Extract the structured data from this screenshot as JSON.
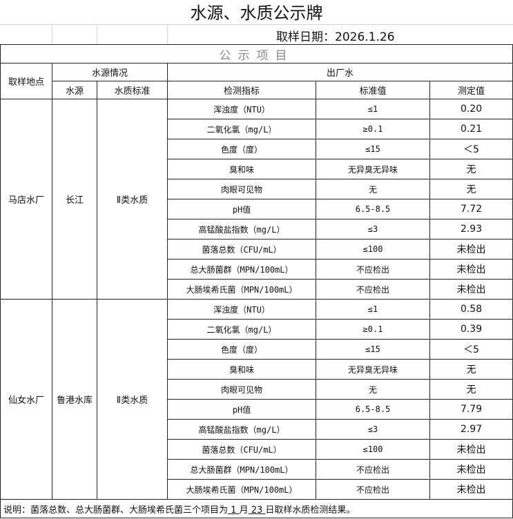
{
  "title": "水源、水质公示牌",
  "date_label": "取样日期：2026.1.26",
  "band": "公示项目",
  "headers": {
    "location": "取样地点",
    "source_group": "水源情况",
    "outlet_group": "出厂水",
    "source": "水源",
    "source_standard": "水质标准",
    "indicator": "检测指标",
    "standard_value": "标准值",
    "measured_value": "测定值"
  },
  "plants": [
    {
      "name": "马店水厂",
      "source": "长江",
      "standard": "Ⅱ类水质",
      "rows": [
        [
          "浑浊度（NTU）",
          "≤1",
          "0.20"
        ],
        [
          "二氧化氯（mg/L）",
          "≥0.1",
          "0.21"
        ],
        [
          "色度（度）",
          "≤15",
          "＜5"
        ],
        [
          "臭和味",
          "无异臭无异味",
          "无"
        ],
        [
          "肉眼可见物",
          "无",
          "无"
        ],
        [
          "pH值",
          "6.5-8.5",
          "7.72"
        ],
        [
          "高锰酸盐指数（mg/L）",
          "≤3",
          "2.93"
        ],
        [
          "菌落总数（CFU/mL）",
          "≤100",
          "未检出"
        ],
        [
          "总大肠菌群（MPN/100mL）",
          "不应检出",
          "未检出"
        ],
        [
          "大肠埃希氏菌（MPN/100mL）",
          "不应检出",
          "未检出"
        ]
      ]
    },
    {
      "name": "仙女水厂",
      "source": "鲁港水库",
      "standard": "Ⅱ类水质",
      "rows": [
        [
          "浑浊度（NTU）",
          "≤1",
          "0.58"
        ],
        [
          "二氧化氯（mg/L）",
          "≥0.1",
          "0.39"
        ],
        [
          "色度（度）",
          "≤15",
          "＜5"
        ],
        [
          "臭和味",
          "无异臭无异味",
          "无"
        ],
        [
          "肉眼可见物",
          "无",
          "无"
        ],
        [
          "pH值",
          "6.5-8.5",
          "7.79"
        ],
        [
          "高锰酸盐指数（mg/L）",
          "≤3",
          "2.97"
        ],
        [
          "菌落总数（CFU/mL）",
          "≤100",
          "未检出"
        ],
        [
          "总大肠菌群（MPN/100mL）",
          "不应检出",
          "未检出"
        ],
        [
          "大肠埃希氏菌（MPN/100mL）",
          "不应检出",
          "未检出"
        ]
      ]
    }
  ],
  "note": {
    "prefix": "说明：菌落总数、总大肠菌群、大肠埃希氏菌三个项目为",
    "month": "1",
    "month_label": "月",
    "day": "23",
    "suffix": "日取样水质检测结果。"
  }
}
